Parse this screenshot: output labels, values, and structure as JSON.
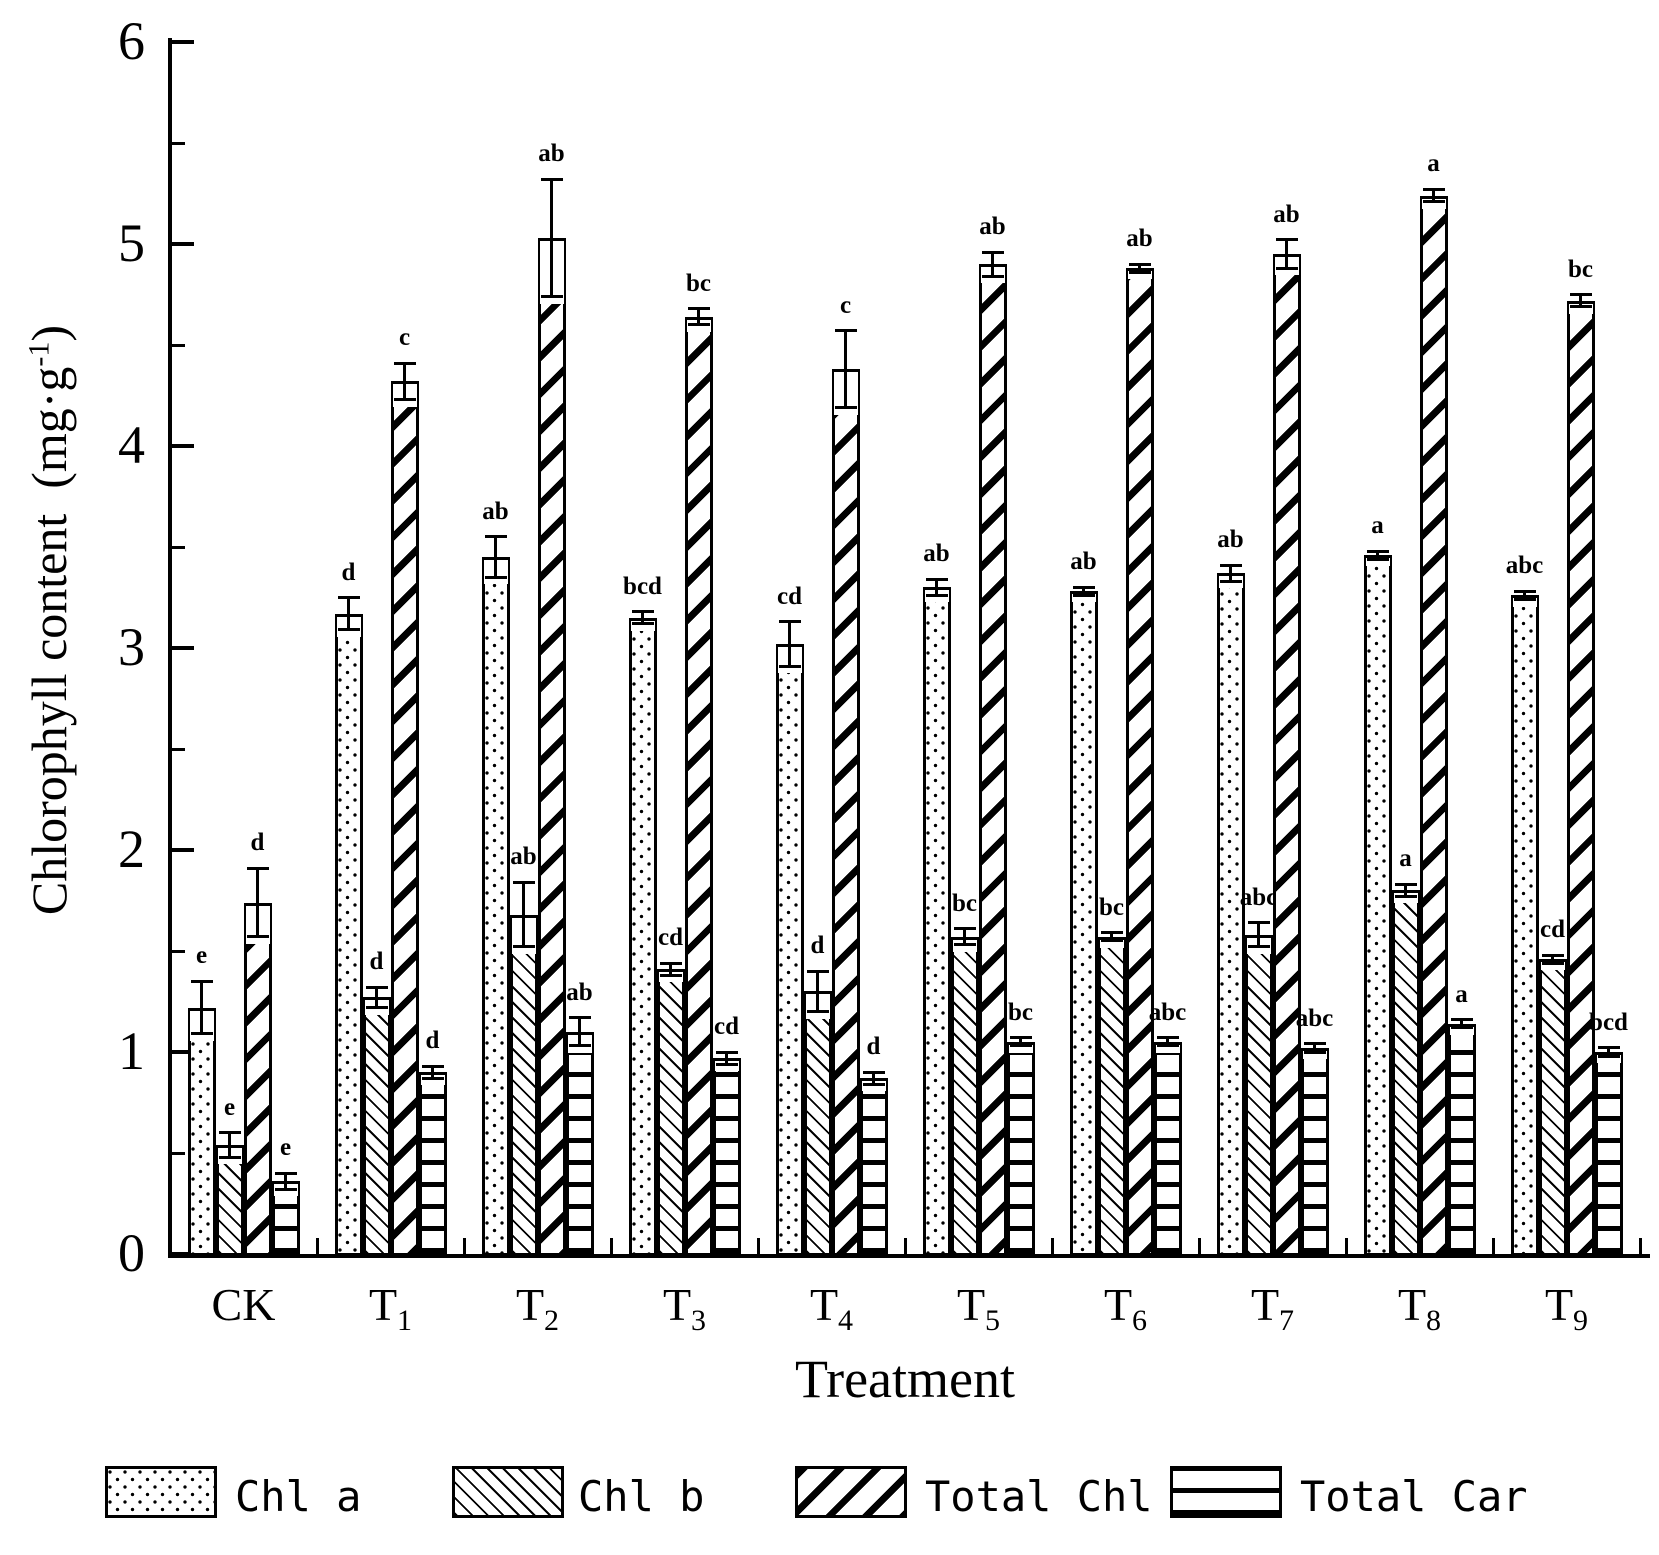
{
  "page": {
    "background": "#ffffff",
    "ink": "#000000"
  },
  "y_axis": {
    "title_main": "Chlorophyll content",
    "title_unit_pre": "(mg·g",
    "title_unit_sup": "-1",
    "title_unit_post": ")",
    "tick_labels": [
      "0",
      "1",
      "2",
      "3",
      "4",
      "5",
      "6"
    ],
    "max": 6,
    "minor_step": 0.5
  },
  "x_axis": {
    "title": "Treatment",
    "categories": [
      {
        "base": "CK",
        "sub": ""
      },
      {
        "base": "T",
        "sub": "1"
      },
      {
        "base": "T",
        "sub": "2"
      },
      {
        "base": "T",
        "sub": "3"
      },
      {
        "base": "T",
        "sub": "4"
      },
      {
        "base": "T",
        "sub": "5"
      },
      {
        "base": "T",
        "sub": "6"
      },
      {
        "base": "T",
        "sub": "7"
      },
      {
        "base": "T",
        "sub": "8"
      },
      {
        "base": "T",
        "sub": "9"
      }
    ]
  },
  "legend": {
    "items": [
      {
        "label": "Chl a",
        "pattern": "dots"
      },
      {
        "label": "Chl b",
        "pattern": "backslash"
      },
      {
        "label": "Total Chl",
        "pattern": "slash"
      },
      {
        "label": "Total Car",
        "pattern": "hlines"
      }
    ]
  },
  "chart_data": {
    "type": "bar",
    "title": "",
    "xlabel": "Treatment",
    "ylabel": "Chlorophyll content (mg·g-1)",
    "ylim": [
      0,
      6
    ],
    "grid": false,
    "legend_position": "bottom",
    "categories": [
      "CK",
      "T1",
      "T2",
      "T3",
      "T4",
      "T5",
      "T6",
      "T7",
      "T8",
      "T9"
    ],
    "series": [
      {
        "name": "Chl a",
        "pattern": "dots",
        "values": [
          1.22,
          3.17,
          3.45,
          3.15,
          3.02,
          3.3,
          3.28,
          3.37,
          3.46,
          3.26
        ],
        "errors": [
          0.13,
          0.08,
          0.1,
          0.03,
          0.11,
          0.04,
          0.02,
          0.04,
          0.02,
          0.02
        ],
        "sig_letters": [
          "e",
          "d",
          "ab",
          "bcd",
          "cd",
          "ab",
          "ab",
          "ab",
          "a",
          "abc"
        ]
      },
      {
        "name": "Chl b",
        "pattern": "backslash",
        "values": [
          0.54,
          1.27,
          1.68,
          1.41,
          1.3,
          1.57,
          1.57,
          1.58,
          1.8,
          1.46
        ],
        "errors": [
          0.06,
          0.05,
          0.16,
          0.03,
          0.1,
          0.04,
          0.02,
          0.06,
          0.03,
          0.02
        ],
        "sig_letters": [
          "e",
          "d",
          "ab",
          "cd",
          "d",
          "bc",
          "bc",
          "abc",
          "a",
          "cd"
        ]
      },
      {
        "name": "Total Chl",
        "pattern": "slash",
        "values": [
          1.74,
          4.32,
          5.03,
          4.64,
          4.38,
          4.9,
          4.88,
          4.95,
          5.24,
          4.72
        ],
        "errors": [
          0.17,
          0.09,
          0.29,
          0.04,
          0.19,
          0.06,
          0.02,
          0.07,
          0.03,
          0.03
        ],
        "sig_letters": [
          "d",
          "c",
          "ab",
          "bc",
          "c",
          "ab",
          "ab",
          "ab",
          "a",
          "bc"
        ]
      },
      {
        "name": "Total Car",
        "pattern": "hlines",
        "values": [
          0.36,
          0.9,
          1.1,
          0.97,
          0.87,
          1.05,
          1.05,
          1.02,
          1.14,
          1.0
        ],
        "errors": [
          0.04,
          0.03,
          0.07,
          0.03,
          0.03,
          0.02,
          0.02,
          0.02,
          0.02,
          0.02
        ],
        "sig_letters": [
          "e",
          "d",
          "ab",
          "cd",
          "d",
          "bc",
          "abc",
          "abc",
          "a",
          "bcd"
        ]
      }
    ]
  }
}
